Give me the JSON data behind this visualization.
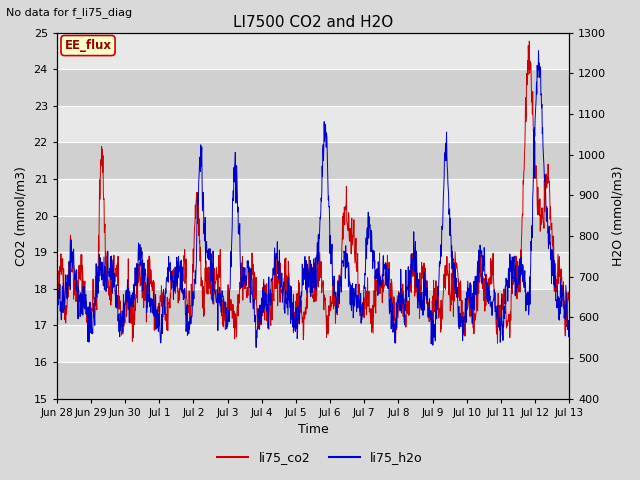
{
  "title": "LI7500 CO2 and H2O",
  "subtitle": "No data for f_li75_diag",
  "xlabel": "Time",
  "ylabel_left": "CO2 (mmol/m3)",
  "ylabel_right": "H2O (mmol/m3)",
  "ylim_left": [
    15.0,
    25.0
  ],
  "ylim_right": [
    400,
    1300
  ],
  "yticks_left": [
    15.0,
    16.0,
    17.0,
    18.0,
    19.0,
    20.0,
    21.0,
    22.0,
    23.0,
    24.0,
    25.0
  ],
  "yticks_right": [
    400,
    500,
    600,
    700,
    800,
    900,
    1000,
    1100,
    1200,
    1300
  ],
  "color_co2": "#cc0000",
  "color_h2o": "#0000cc",
  "legend_labels": [
    "li75_co2",
    "li75_h2o"
  ],
  "annotation_box_text": "EE_flux",
  "annotation_box_color": "#ffffcc",
  "annotation_box_edgecolor": "#cc0000",
  "background_color": "#d9d9d9",
  "plot_bg_color": "#e8e8e8",
  "band_color_dark": "#d0d0d0",
  "band_color_light": "#e8e8e8",
  "x_tick_labels": [
    "Jun 28",
    "Jun 29",
    "Jun 30",
    "Jul 1",
    "Jul 2",
    "Jul 3",
    "Jul 4",
    "Jul 5",
    "Jul 6",
    "Jul 7",
    "Jul 8",
    "Jul 9",
    "Jul 10",
    "Jul 11",
    "Jul 12",
    "Jul 13"
  ],
  "num_points": 1500,
  "figwidth": 6.4,
  "figheight": 4.8,
  "dpi": 100
}
